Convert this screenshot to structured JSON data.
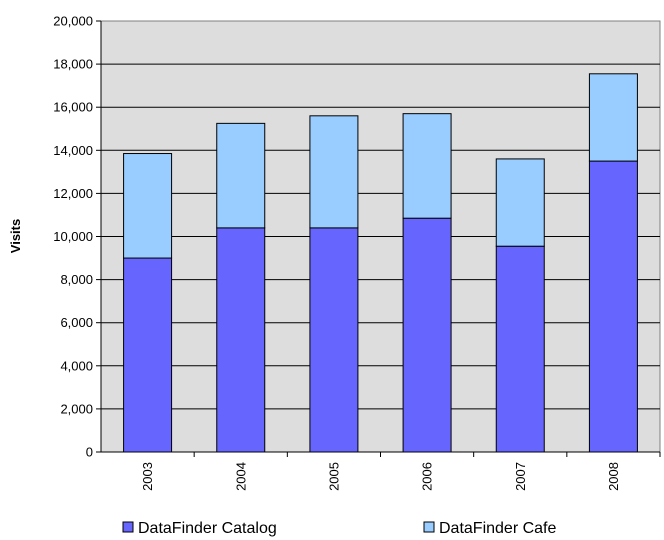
{
  "chart_data": {
    "type": "bar",
    "stacked": true,
    "categories": [
      "2003",
      "2004",
      "2005",
      "2006",
      "2007",
      "2008"
    ],
    "series": [
      {
        "name": "DataFinder Catalog",
        "color": "#6666ff",
        "values": [
          9000,
          10400,
          10400,
          10850,
          9550,
          13500
        ]
      },
      {
        "name": "DataFinder Cafe",
        "color": "#99ccff",
        "values": [
          4850,
          4850,
          5200,
          4850,
          4050,
          4050
        ]
      }
    ],
    "title": "",
    "xlabel": "",
    "ylabel": "Visits",
    "ylim": [
      0,
      20000
    ],
    "yticks": [
      0,
      2000,
      4000,
      6000,
      8000,
      10000,
      12000,
      14000,
      16000,
      18000,
      20000
    ],
    "ytick_labels": [
      "0",
      "2,000",
      "4,000",
      "6,000",
      "8,000",
      "10,000",
      "12,000",
      "14,000",
      "16,000",
      "18,000",
      "20,000"
    ],
    "grid": true,
    "plot_background": "#dddddd",
    "legend_position": "bottom"
  }
}
